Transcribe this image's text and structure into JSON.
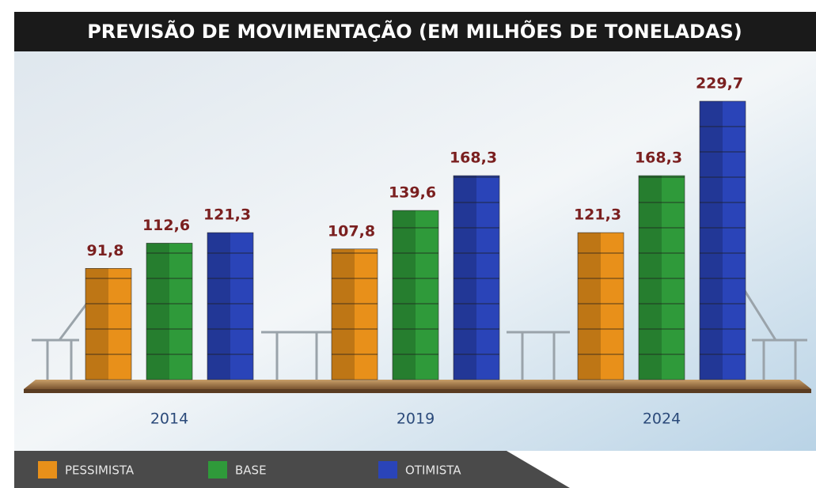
{
  "chart_data": {
    "type": "bar",
    "title": "PREVISÃO DE MOVIMENTAÇÃO (EM MILHÕES DE TONELADAS)",
    "categories": [
      "2014",
      "2019",
      "2024"
    ],
    "series": [
      {
        "name": "PESSIMISTA",
        "color": "#e8901a",
        "values": [
          91.8,
          107.8,
          121.3
        ],
        "value_labels": [
          "91,8",
          "107,8",
          "121,3"
        ]
      },
      {
        "name": "BASE",
        "color": "#2f9a3a",
        "values": [
          112.6,
          139.6,
          168.3
        ],
        "value_labels": [
          "112,6",
          "139,6",
          "168,3"
        ]
      },
      {
        "name": "OTIMISTA",
        "color": "#2a44b8",
        "values": [
          121.3,
          168.3,
          229.7
        ],
        "value_labels": [
          "121,3",
          "168,3",
          "229,7"
        ]
      }
    ]
  }
}
